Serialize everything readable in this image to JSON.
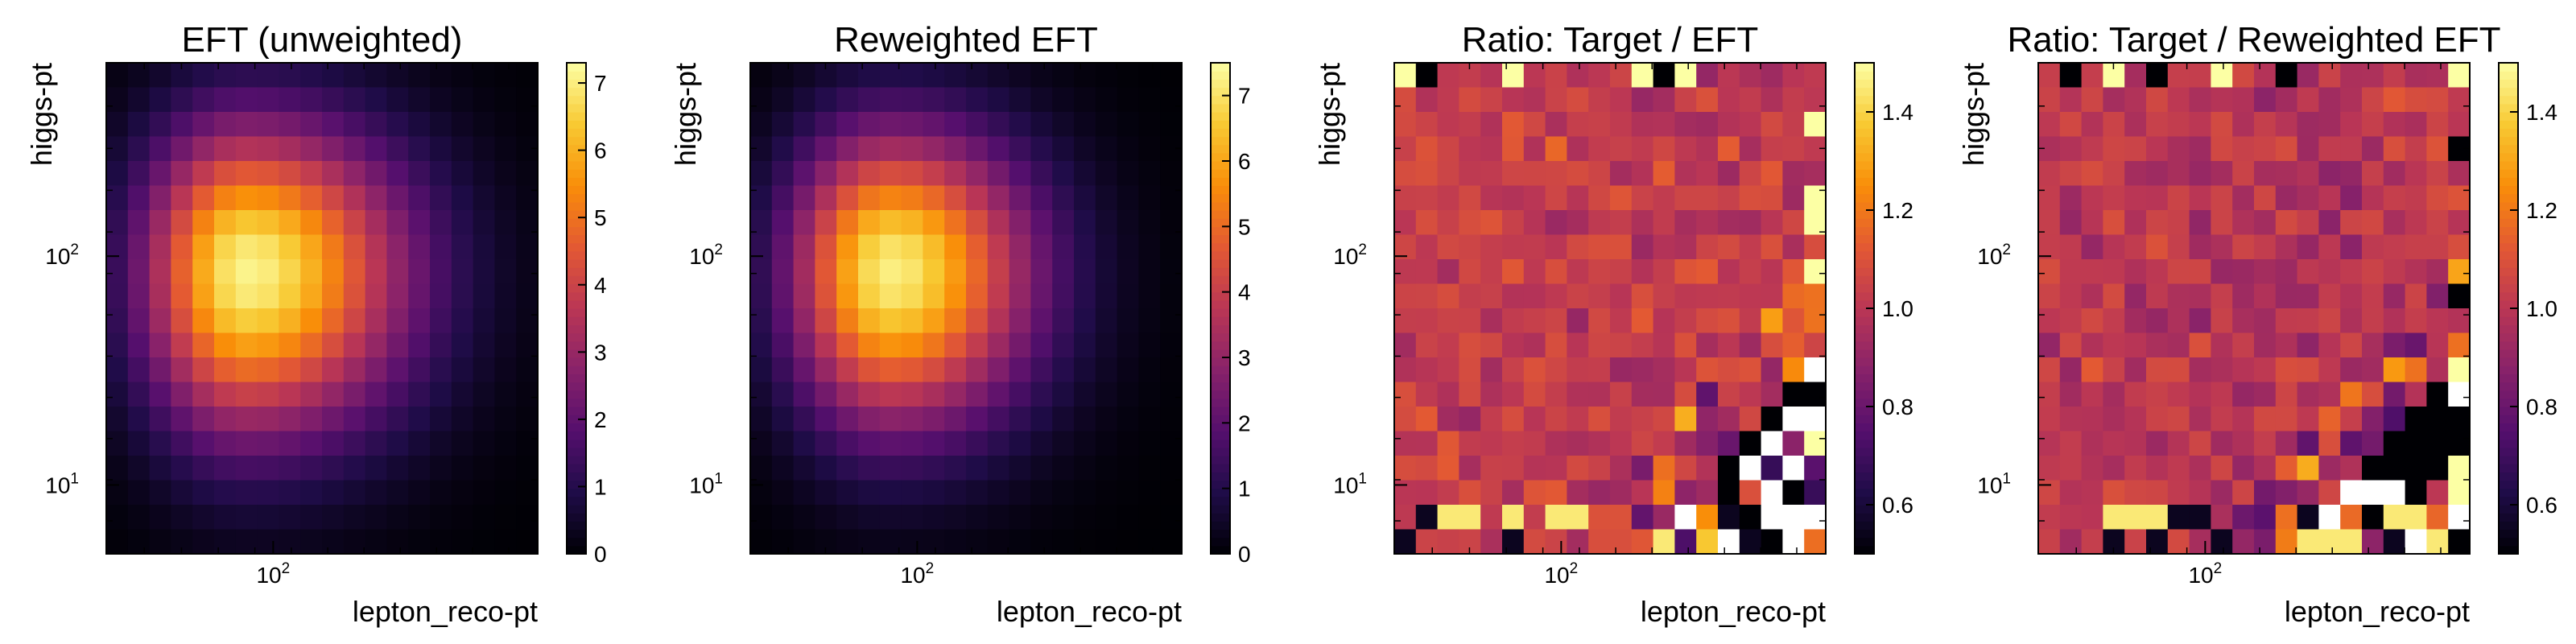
{
  "colormap": "inferno",
  "colors": {
    "colormap_stops": [
      "#000004",
      "#1f0c48",
      "#550f6d",
      "#88226a",
      "#ba3655",
      "#e35933",
      "#f98e09",
      "#f8c932",
      "#fcffa4"
    ],
    "ratio_overflow": "#ffffff"
  },
  "chart_data": [
    {
      "type": "heatmap",
      "title": "EFT (unweighted)",
      "xlabel": "lepton_reco-pt",
      "ylabel": "higgs-pt",
      "xscale": "log",
      "yscale": "log",
      "x_ticks": [
        {
          "value": 100,
          "label": "10",
          "exp": "2"
        }
      ],
      "y_ticks": [
        {
          "value": 10,
          "label": "10",
          "exp": "1"
        },
        {
          "value": 100,
          "label": "10",
          "exp": "2"
        }
      ],
      "grid": false,
      "colorbar": {
        "vmin": 0,
        "vmax": 7.3,
        "ticks": [
          "0",
          "1",
          "2",
          "3",
          "4",
          "5",
          "6",
          "7"
        ],
        "tick_values": [
          0,
          1,
          2,
          3,
          4,
          5,
          6,
          7
        ]
      },
      "bins": {
        "nx": 20,
        "ny": 20
      },
      "z_model": {
        "kind": "gaussian_blob",
        "peak": 7.1,
        "center_col": 6,
        "center_row": 8,
        "sigma_x_left": 3.3,
        "sigma_x_right": 5.2,
        "sigma_y_top": 4.2,
        "sigma_y_bottom": 4.6
      }
    },
    {
      "type": "heatmap",
      "title": "Reweighted EFT",
      "xlabel": "lepton_reco-pt",
      "ylabel": "higgs-pt",
      "xscale": "log",
      "yscale": "log",
      "x_ticks": [
        {
          "value": 100,
          "label": "10",
          "exp": "2"
        }
      ],
      "y_ticks": [
        {
          "value": 10,
          "label": "10",
          "exp": "1"
        },
        {
          "value": 100,
          "label": "10",
          "exp": "2"
        }
      ],
      "grid": false,
      "colorbar": {
        "vmin": 0,
        "vmax": 7.5,
        "ticks": [
          "0",
          "1",
          "2",
          "3",
          "4",
          "5",
          "6",
          "7"
        ],
        "tick_values": [
          0,
          1,
          2,
          3,
          4,
          5,
          6,
          7
        ]
      },
      "bins": {
        "nx": 20,
        "ny": 20
      },
      "z_model": {
        "kind": "gaussian_blob",
        "peak": 7.2,
        "center_col": 6,
        "center_row": 8,
        "sigma_x_left": 3.2,
        "sigma_x_right": 4.6,
        "sigma_y_top": 4.0,
        "sigma_y_bottom": 4.4
      }
    },
    {
      "type": "heatmap",
      "title": "Ratio: Target / EFT",
      "xlabel": "lepton_reco-pt",
      "ylabel": "higgs-pt",
      "xscale": "log",
      "yscale": "log",
      "x_ticks": [
        {
          "value": 100,
          "label": "10",
          "exp": "2"
        }
      ],
      "y_ticks": [
        {
          "value": 10,
          "label": "10",
          "exp": "1"
        },
        {
          "value": 100,
          "label": "10",
          "exp": "2"
        }
      ],
      "grid": false,
      "colorbar": {
        "vmin": 0.5,
        "vmax": 1.5,
        "ticks": [
          "0.6",
          "0.8",
          "1.0",
          "1.2",
          "1.4"
        ],
        "tick_values": [
          0.6,
          0.8,
          1.0,
          1.2,
          1.4
        ]
      },
      "bins": {
        "nx": 20,
        "ny": 20
      },
      "z_model": {
        "kind": "noisy_ratio",
        "base": 1.02,
        "noise": 0.07,
        "seed": 11
      }
    },
    {
      "type": "heatmap",
      "title": "Ratio: Target / Reweighted EFT",
      "xlabel": "lepton_reco-pt",
      "ylabel": "higgs-pt",
      "xscale": "log",
      "yscale": "log",
      "x_ticks": [
        {
          "value": 100,
          "label": "10",
          "exp": "2"
        }
      ],
      "y_ticks": [
        {
          "value": 10,
          "label": "10",
          "exp": "1"
        },
        {
          "value": 100,
          "label": "10",
          "exp": "2"
        }
      ],
      "grid": false,
      "colorbar": {
        "vmin": 0.5,
        "vmax": 1.5,
        "ticks": [
          "0.6",
          "0.8",
          "1.0",
          "1.2",
          "1.4"
        ],
        "tick_values": [
          0.6,
          0.8,
          1.0,
          1.2,
          1.4
        ]
      },
      "bins": {
        "nx": 20,
        "ny": 20
      },
      "z_model": {
        "kind": "noisy_ratio",
        "base": 1.0,
        "noise": 0.07,
        "seed": 29
      }
    }
  ]
}
